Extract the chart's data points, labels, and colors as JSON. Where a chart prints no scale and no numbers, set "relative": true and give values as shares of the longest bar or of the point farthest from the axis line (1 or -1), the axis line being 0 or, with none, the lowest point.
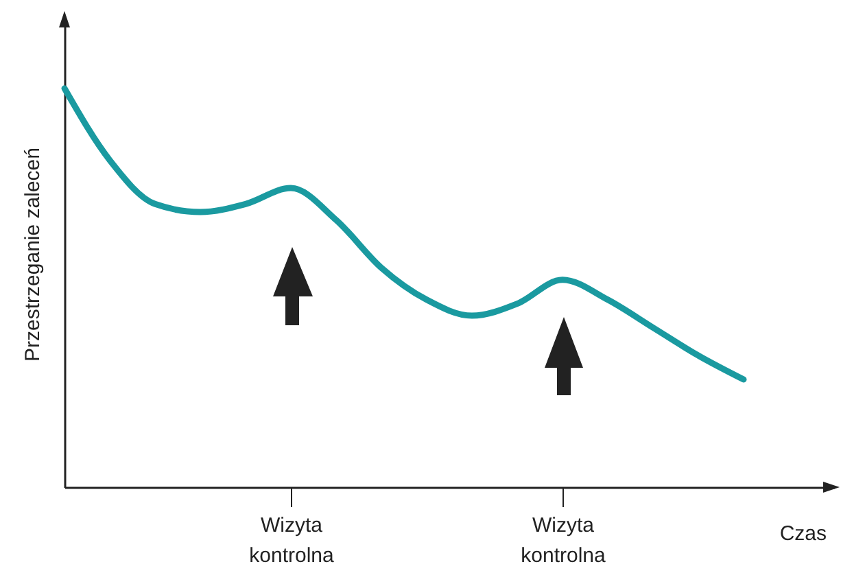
{
  "chart_data": {
    "type": "line",
    "relative": true,
    "ylabel": "Przestrzeganie zaleceń",
    "xlabel": "Czas",
    "categories": [
      null,
      null,
      null,
      null,
      null,
      "Wizyta kontrolna",
      null,
      null,
      null,
      null,
      null,
      "Wizyta kontrolna",
      null,
      null,
      null,
      null,
      null,
      null
    ],
    "series": [
      {
        "color": "#1a9aa0",
        "values": [
          1.0,
          0.82,
          0.71,
          0.69,
          0.71,
          0.75,
          0.67,
          0.55,
          0.47,
          0.43,
          0.46,
          0.52,
          0.47,
          0.4,
          0.33,
          0.27,
          null,
          null
        ]
      }
    ],
    "line_style": "solid"
  }
}
